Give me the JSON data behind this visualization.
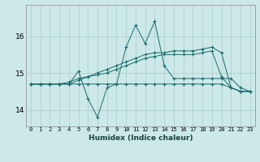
{
  "xlabel": "Humidex (Indice chaleur)",
  "bg_color": "#cce8e8",
  "grid_color": "#aacccc",
  "line_color": "#1a6b6b",
  "xlim": [
    -0.5,
    23.5
  ],
  "ylim": [
    13.55,
    16.85
  ],
  "yticks": [
    14,
    15,
    16
  ],
  "xticks": [
    0,
    1,
    2,
    3,
    4,
    5,
    6,
    7,
    8,
    9,
    10,
    11,
    12,
    13,
    14,
    15,
    16,
    17,
    18,
    19,
    20,
    21,
    22,
    23
  ],
  "series": [
    [
      14.7,
      14.7,
      14.7,
      14.7,
      14.7,
      15.05,
      14.3,
      13.8,
      14.6,
      14.7,
      15.7,
      16.3,
      15.8,
      16.4,
      15.2,
      14.85,
      14.85,
      14.85,
      14.85,
      14.85,
      14.85,
      14.85,
      14.6,
      14.5
    ],
    [
      14.7,
      14.7,
      14.7,
      14.7,
      14.7,
      14.7,
      14.7,
      14.7,
      14.7,
      14.7,
      14.7,
      14.7,
      14.7,
      14.7,
      14.7,
      14.7,
      14.7,
      14.7,
      14.7,
      14.7,
      14.7,
      14.6,
      14.5,
      14.5
    ],
    [
      14.7,
      14.7,
      14.7,
      14.7,
      14.75,
      14.85,
      14.9,
      14.95,
      15.0,
      15.1,
      15.2,
      15.3,
      15.4,
      15.45,
      15.5,
      15.5,
      15.5,
      15.5,
      15.55,
      15.6,
      14.9,
      14.6,
      14.5,
      14.5
    ],
    [
      14.7,
      14.7,
      14.7,
      14.7,
      14.7,
      14.8,
      14.9,
      15.0,
      15.1,
      15.2,
      15.3,
      15.4,
      15.5,
      15.55,
      15.55,
      15.6,
      15.6,
      15.6,
      15.65,
      15.7,
      15.55,
      14.6,
      14.5,
      14.5
    ]
  ]
}
